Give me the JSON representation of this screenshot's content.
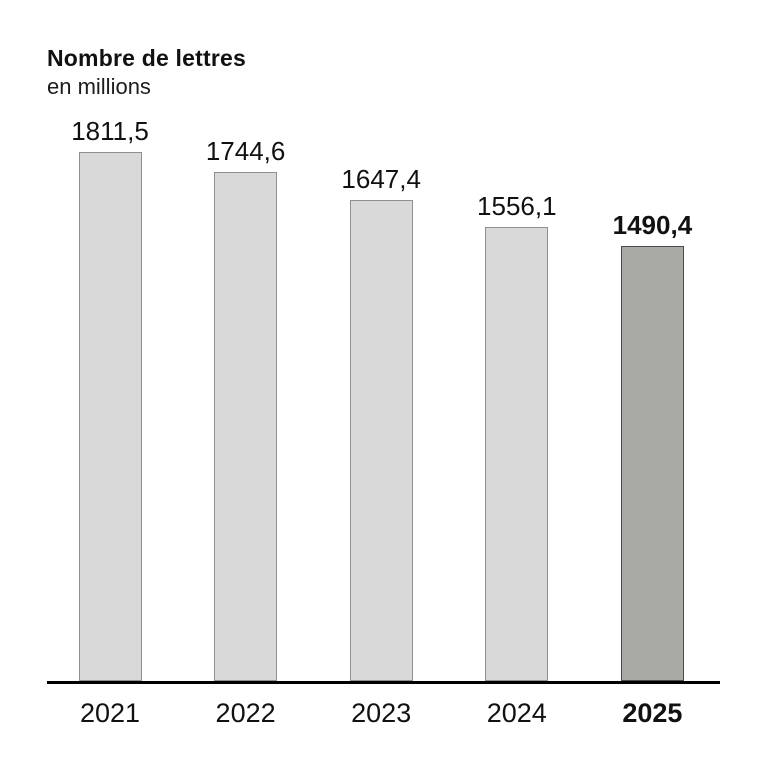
{
  "header": {
    "title": "Nombre de lettres",
    "subtitle": "en millions"
  },
  "chart_data": {
    "type": "bar",
    "title": "Nombre de lettres",
    "subtitle": "en millions",
    "categories": [
      "2021",
      "2022",
      "2023",
      "2024",
      "2025"
    ],
    "values": [
      1811.5,
      1744.6,
      1647.4,
      1556.1,
      1490.4
    ],
    "value_labels": [
      "1811,5",
      "1744,6",
      "1647,4",
      "1556,1",
      "1490,4"
    ],
    "highlight_index": 4,
    "ylim": [
      0,
      1900
    ],
    "grid": false,
    "legend": false,
    "colors": {
      "bar_fill": "#d9d9d9",
      "bar_border": "#8f8f8f",
      "highlight_fill": "#a9a9a6",
      "highlight_border": "#4a4a4a",
      "axis": "#000000",
      "text": "#111111"
    }
  }
}
